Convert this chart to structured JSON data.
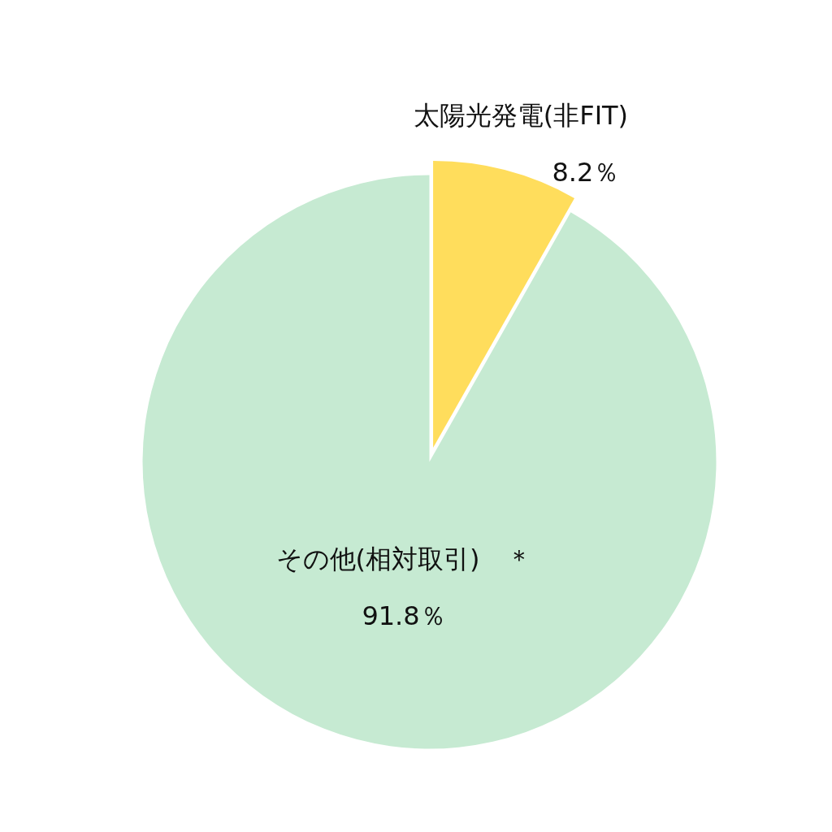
{
  "chart_data": {
    "type": "pie",
    "categories": [
      "太陽光発電(非FIT)",
      "その他(相対取引)　＊"
    ],
    "values": [
      8.2,
      91.8
    ],
    "colors": [
      "#ffdd5c",
      "#c6ead2"
    ],
    "value_labels": [
      "8.2％",
      "91.8％"
    ]
  }
}
